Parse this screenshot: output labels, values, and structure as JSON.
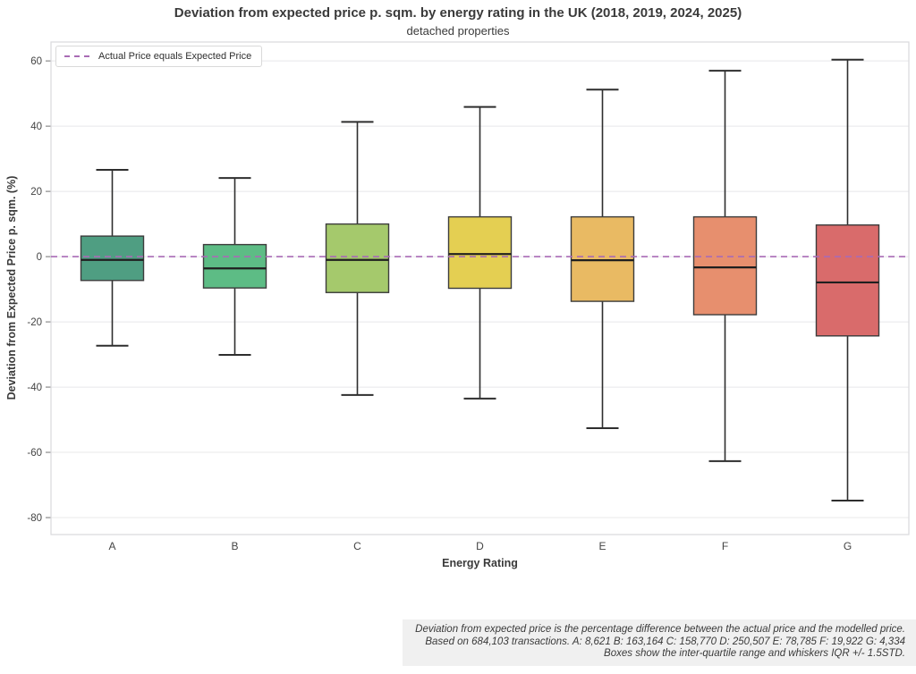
{
  "header": {
    "title": "Deviation from expected price p. sqm. by energy rating in the UK (2018, 2019, 2024, 2025)",
    "subtitle": "detached properties"
  },
  "legend": {
    "label": "Actual Price equals Expected Price"
  },
  "footer": {
    "line1": "Deviation from expected price is the percentage difference between the actual price and the modelled price.",
    "line2": "Based on 684,103 transactions. A: 8,621 B: 163,164 C: 158,770 D: 250,507 E: 78,785 F: 19,922 G: 4,334",
    "line3": "Boxes show the inter-quartile range and whiskers IQR +/- 1.5STD."
  },
  "chart_data": {
    "type": "boxplot",
    "title": "Deviation from expected price p. sqm. by energy rating in the UK (2018, 2019, 2024, 2025)",
    "subtitle": "detached properties",
    "xlabel": "Energy Rating",
    "ylabel": "Deviation from Expected Price p. sqm. (%)",
    "categories": [
      "A",
      "B",
      "C",
      "D",
      "E",
      "F",
      "G"
    ],
    "y_ticks": [
      60,
      40,
      20,
      0,
      -20,
      -40,
      -60,
      -80
    ],
    "ylim": [
      -85.2,
      65.8
    ],
    "grid": "horizontal-major",
    "legend_position": "upper-left",
    "zero_line": {
      "value": 0,
      "style": "dashed",
      "color": "#a96bb5",
      "label": "Actual Price equals Expected Price"
    },
    "transaction_counts": {
      "total": "684,103",
      "A": "8,621",
      "B": "163,164",
      "C": "158,770",
      "D": "250,507",
      "E": "78,785",
      "F": "19,922",
      "G": "4,334"
    },
    "boxes": [
      {
        "category": "A",
        "whisker_low": -27.3,
        "q1": -7.3,
        "median": -1.0,
        "q3": 6.3,
        "whisker_high": 26.6,
        "color": "#4f9e82"
      },
      {
        "category": "B",
        "whisker_low": -30.1,
        "q1": -9.6,
        "median": -3.6,
        "q3": 3.7,
        "whisker_high": 24.1,
        "color": "#5dbc85"
      },
      {
        "category": "C",
        "whisker_low": -42.4,
        "q1": -11.0,
        "median": -1.0,
        "q3": 10.0,
        "whisker_high": 41.3,
        "color": "#a5c96c"
      },
      {
        "category": "D",
        "whisker_low": -43.5,
        "q1": -9.7,
        "median": 0.8,
        "q3": 12.2,
        "whisker_high": 45.9,
        "color": "#e4cf52"
      },
      {
        "category": "E",
        "whisker_low": -52.6,
        "q1": -13.7,
        "median": -1.1,
        "q3": 12.2,
        "whisker_high": 51.2,
        "color": "#e9ba63"
      },
      {
        "category": "F",
        "whisker_low": -62.7,
        "q1": -17.8,
        "median": -3.3,
        "q3": 12.2,
        "whisker_high": 57.0,
        "color": "#e78f6e"
      },
      {
        "category": "G",
        "whisker_low": -74.8,
        "q1": -24.3,
        "median": -7.9,
        "q3": 9.7,
        "whisker_high": 60.4,
        "color": "#d96b6b"
      }
    ],
    "style": {
      "grid_color": "#e8e8ea",
      "border_color": "#d9d9dc",
      "box_stroke": "#3c3c3c",
      "median_color": "#1f1f1f",
      "whisker_color": "#2e2e2e",
      "tick_label_color": "#444444"
    }
  }
}
